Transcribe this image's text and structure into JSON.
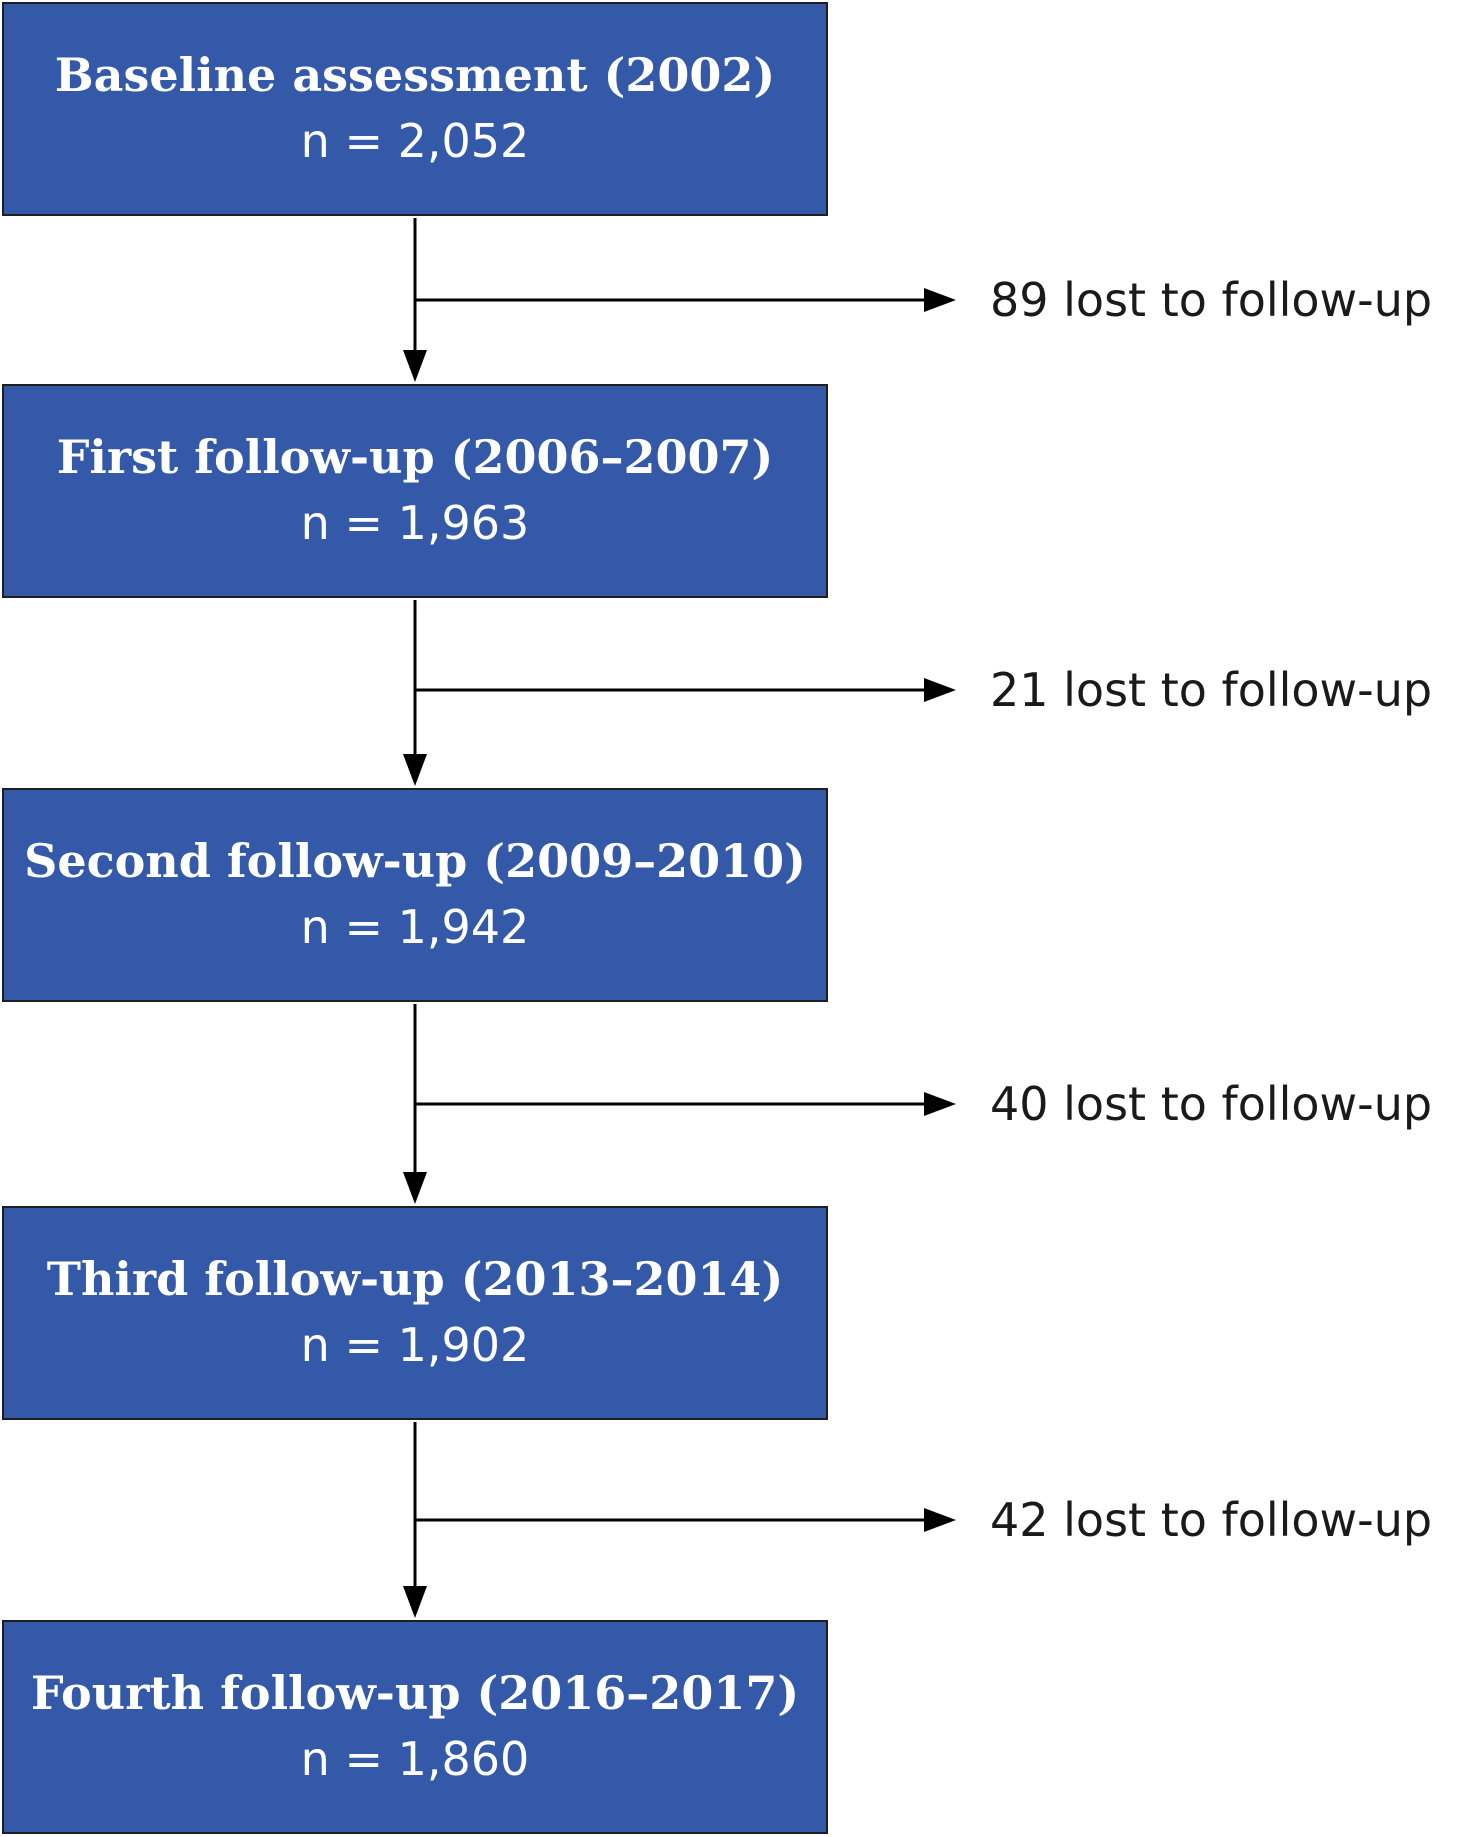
{
  "stages": [
    {
      "title": "Baseline assessment (2002)",
      "count": "n = 2,052"
    },
    {
      "title": "First follow-up (2006–2007)",
      "count": "n = 1,963"
    },
    {
      "title": "Second follow-up (2009–2010)",
      "count": "n = 1,942"
    },
    {
      "title": "Third follow-up (2013–2014)",
      "count": "n = 1,902"
    },
    {
      "title": "Fourth follow-up (2016–2017)",
      "count": "n = 1,860"
    }
  ],
  "losses": [
    {
      "label": "89 lost to follow-up"
    },
    {
      "label": "21 lost to follow-up"
    },
    {
      "label": "40 lost to follow-up"
    },
    {
      "label": "42 lost to follow-up"
    }
  ],
  "colors": {
    "box_fill": "#3459a8",
    "box_border": "#1f1f1f",
    "box_text": "#ffffff",
    "line": "#000000"
  }
}
